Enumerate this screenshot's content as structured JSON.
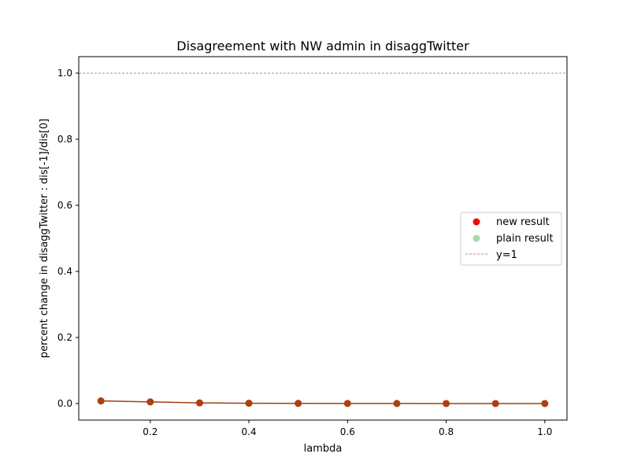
{
  "chart_data": {
    "type": "scatter",
    "title": "Disagreement with NW admin in disaggTwitter",
    "xlabel": "lambda",
    "ylabel": "percent change in disaggTwitter : dis[-1]/dis[0]",
    "xlim": [
      0.055,
      1.045
    ],
    "ylim": [
      -0.05,
      1.05
    ],
    "xticks": [
      0.2,
      0.4,
      0.6,
      0.8,
      1.0
    ],
    "xtick_labels": [
      "0.2",
      "0.4",
      "0.6",
      "0.8",
      "1.0"
    ],
    "yticks": [
      0.0,
      0.2,
      0.4,
      0.6,
      0.8,
      1.0
    ],
    "ytick_labels": [
      "0.0",
      "0.2",
      "0.4",
      "0.6",
      "0.8",
      "1.0"
    ],
    "grid": false,
    "legend_position": "center-right",
    "series": [
      {
        "name": "new result",
        "color": "#ff0000",
        "marker": "circle",
        "x": [
          0.1,
          0.2,
          0.3,
          0.4,
          0.5,
          0.6,
          0.7,
          0.8,
          0.9,
          1.0
        ],
        "y": [
          0.008,
          0.005,
          0.002,
          0.001,
          0.0005,
          0.0003,
          0.0002,
          0.0001,
          0.0001,
          0.0001
        ]
      },
      {
        "name": "plain result",
        "color": "#2ca02c",
        "marker": "circle",
        "x": [
          0.1,
          0.2,
          0.3,
          0.4,
          0.5,
          0.6,
          0.7,
          0.8,
          0.9,
          1.0
        ],
        "y": [
          0.008,
          0.005,
          0.002,
          0.001,
          0.0005,
          0.0003,
          0.0002,
          0.0001,
          0.0001,
          0.0001
        ]
      }
    ],
    "connecting_line_color": "#a0400f",
    "reference_line": {
      "name": "y=1",
      "y": 1.0,
      "color": "#999999",
      "style": "dashed"
    }
  }
}
